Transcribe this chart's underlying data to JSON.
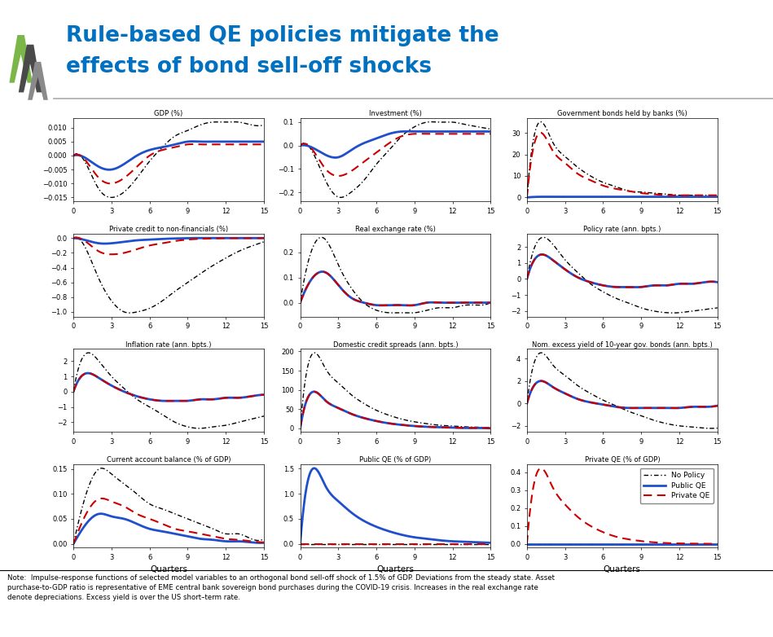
{
  "title_line1": "Rule-based QE policies mitigate the",
  "title_line2": "effects of bond sell-off shocks",
  "title_color": "#0070C0",
  "note_text": "Note:  Impulse-response functions of selected model variables to an orthogonal bond sell-off shock of 1.5% of GDP. Deviations from the steady state. Asset\npurchase-to-GDP ratio is representative of EME central bank sovereign bond purchases during the COVID-19 crisis. Increases in the real exchange rate\ndenote depreciations. Excess yield is over the US short–term rate.",
  "subplot_titles": [
    "GDP (%)",
    "Investment (%)",
    "Government bonds held by banks (%)",
    "Private credit to non-financials (%)",
    "Real exchange rate (%)",
    "Policy rate (ann. bpts.)",
    "Inflation rate (ann. bpts.)",
    "Domestic credit spreads (ann. bpts.)",
    "Nom. excess yield of 10-year gov. bonds (ann. bpts.)",
    "Current account balance (% of GDP)",
    "Public QE (% of GDP)",
    "Private QE (% of GDP)"
  ],
  "x_label": "Quarters",
  "legend_labels": [
    "No Policy",
    "Public QE",
    "Private QE"
  ],
  "quarters": [
    0,
    1,
    2,
    3,
    4,
    5,
    6,
    7,
    8,
    9,
    10,
    11,
    12,
    13,
    14,
    15
  ],
  "gdp_np": [
    0,
    -0.003,
    -0.012,
    -0.015,
    -0.013,
    -0.008,
    -0.002,
    0.003,
    0.007,
    0.009,
    0.011,
    0.012,
    0.012,
    0.012,
    0.011,
    0.011
  ],
  "gdp_pq": [
    0,
    -0.001,
    -0.004,
    -0.005,
    -0.003,
    0.0,
    0.002,
    0.003,
    0.004,
    0.005,
    0.005,
    0.005,
    0.005,
    0.005,
    0.005,
    0.005
  ],
  "gdp_prq": [
    0,
    -0.002,
    -0.008,
    -0.01,
    -0.008,
    -0.004,
    0.0,
    0.002,
    0.003,
    0.004,
    0.004,
    0.004,
    0.004,
    0.004,
    0.004,
    0.004
  ],
  "inv_np": [
    0,
    -0.03,
    -0.15,
    -0.22,
    -0.2,
    -0.15,
    -0.08,
    -0.02,
    0.04,
    0.08,
    0.1,
    0.1,
    0.1,
    0.09,
    0.08,
    0.07
  ],
  "inv_pq": [
    0,
    -0.01,
    -0.04,
    -0.05,
    -0.02,
    0.01,
    0.03,
    0.05,
    0.06,
    0.06,
    0.06,
    0.06,
    0.06,
    0.06,
    0.06,
    0.06
  ],
  "inv_prq": [
    0,
    -0.02,
    -0.1,
    -0.13,
    -0.11,
    -0.07,
    -0.03,
    0.01,
    0.04,
    0.05,
    0.05,
    0.05,
    0.05,
    0.05,
    0.05,
    0.05
  ],
  "gbhb_np": [
    0,
    35,
    26,
    19,
    14,
    10,
    7,
    5,
    3,
    2.5,
    2,
    1.5,
    1,
    1,
    1,
    1
  ],
  "gbhb_pq": [
    0,
    0.3,
    0.3,
    0.3,
    0.3,
    0.3,
    0.3,
    0.3,
    0.3,
    0.3,
    0.3,
    0.3,
    0.3,
    0.3,
    0.3,
    0.3
  ],
  "gbhb_prq": [
    0,
    30,
    22,
    16,
    11,
    8,
    5.5,
    4,
    3,
    2,
    1.5,
    1,
    1,
    1,
    1,
    1
  ],
  "pc_np": [
    0,
    -0.15,
    -0.55,
    -0.85,
    -1.0,
    -1.0,
    -0.95,
    -0.85,
    -0.72,
    -0.6,
    -0.48,
    -0.37,
    -0.27,
    -0.18,
    -0.11,
    -0.05
  ],
  "pc_pq": [
    0,
    -0.03,
    -0.07,
    -0.07,
    -0.05,
    -0.03,
    -0.02,
    -0.01,
    -0.005,
    0,
    0,
    0,
    0,
    0,
    0,
    0
  ],
  "pc_prq": [
    0,
    -0.05,
    -0.18,
    -0.22,
    -0.2,
    -0.15,
    -0.1,
    -0.07,
    -0.04,
    -0.02,
    -0.01,
    -0.005,
    0,
    0,
    0,
    0
  ],
  "rex_np": [
    0,
    0.22,
    0.25,
    0.15,
    0.06,
    0.0,
    -0.03,
    -0.04,
    -0.04,
    -0.04,
    -0.03,
    -0.02,
    -0.02,
    -0.01,
    -0.01,
    0
  ],
  "rex_pq": [
    0,
    0.1,
    0.12,
    0.07,
    0.02,
    0.0,
    -0.01,
    -0.01,
    -0.01,
    -0.01,
    0,
    0,
    0,
    0,
    0,
    0
  ],
  "rex_prq": [
    0,
    0.1,
    0.12,
    0.07,
    0.02,
    0.0,
    -0.01,
    -0.01,
    -0.01,
    -0.01,
    0,
    0,
    0,
    0,
    0,
    0
  ],
  "pr_np": [
    0,
    2.5,
    2.2,
    1.2,
    0.4,
    -0.3,
    -0.8,
    -1.2,
    -1.5,
    -1.8,
    -2.0,
    -2.1,
    -2.1,
    -2.0,
    -1.9,
    -1.8
  ],
  "pr_pq": [
    0,
    1.5,
    1.2,
    0.6,
    0.1,
    -0.2,
    -0.4,
    -0.5,
    -0.5,
    -0.5,
    -0.4,
    -0.4,
    -0.3,
    -0.3,
    -0.2,
    -0.2
  ],
  "pr_prq": [
    0,
    1.5,
    1.2,
    0.6,
    0.1,
    -0.2,
    -0.4,
    -0.5,
    -0.5,
    -0.5,
    -0.4,
    -0.4,
    -0.3,
    -0.3,
    -0.2,
    -0.2
  ],
  "inf_np": [
    0,
    2.5,
    2.0,
    1.0,
    0.2,
    -0.5,
    -1.0,
    -1.5,
    -2.0,
    -2.3,
    -2.4,
    -2.3,
    -2.2,
    -2.0,
    -1.8,
    -1.6
  ],
  "inf_pq": [
    0,
    1.2,
    0.9,
    0.4,
    0.0,
    -0.3,
    -0.5,
    -0.6,
    -0.6,
    -0.6,
    -0.5,
    -0.5,
    -0.4,
    -0.4,
    -0.3,
    -0.2
  ],
  "inf_prq": [
    0,
    1.2,
    0.9,
    0.4,
    0.0,
    -0.3,
    -0.5,
    -0.6,
    -0.6,
    -0.6,
    -0.5,
    -0.5,
    -0.4,
    -0.4,
    -0.3,
    -0.2
  ],
  "dcs_np": [
    0,
    195,
    155,
    118,
    88,
    65,
    47,
    34,
    24,
    17,
    12,
    8,
    6,
    4,
    3,
    2
  ],
  "dcs_pq": [
    0,
    95,
    72,
    53,
    38,
    27,
    19,
    13,
    9,
    6,
    4,
    3,
    2,
    1,
    1,
    0
  ],
  "dcs_prq": [
    0,
    95,
    72,
    53,
    38,
    27,
    19,
    13,
    9,
    6,
    4,
    3,
    2,
    1,
    1,
    0
  ],
  "ney_np": [
    0,
    4.5,
    3.5,
    2.5,
    1.6,
    0.9,
    0.3,
    -0.2,
    -0.7,
    -1.1,
    -1.5,
    -1.8,
    -2.0,
    -2.1,
    -2.2,
    -2.2
  ],
  "ney_pq": [
    0,
    2.0,
    1.5,
    0.9,
    0.4,
    0.1,
    -0.1,
    -0.3,
    -0.4,
    -0.4,
    -0.4,
    -0.4,
    -0.4,
    -0.3,
    -0.3,
    -0.2
  ],
  "ney_prq": [
    0,
    2.0,
    1.5,
    0.9,
    0.4,
    0.1,
    -0.1,
    -0.3,
    -0.4,
    -0.4,
    -0.4,
    -0.4,
    -0.4,
    -0.3,
    -0.3,
    -0.2
  ],
  "cab_np": [
    0,
    0.1,
    0.15,
    0.14,
    0.12,
    0.1,
    0.08,
    0.07,
    0.06,
    0.05,
    0.04,
    0.03,
    0.02,
    0.02,
    0.01,
    0.01
  ],
  "cab_pq": [
    0,
    0.04,
    0.06,
    0.055,
    0.05,
    0.04,
    0.03,
    0.025,
    0.02,
    0.015,
    0.01,
    0.008,
    0.005,
    0.005,
    0.003,
    0.002
  ],
  "cab_prq": [
    0,
    0.06,
    0.09,
    0.085,
    0.075,
    0.06,
    0.05,
    0.04,
    0.03,
    0.025,
    0.02,
    0.015,
    0.01,
    0.008,
    0.005,
    0.003
  ],
  "pqe_np": [
    0,
    0,
    0,
    0,
    0,
    0,
    0,
    0,
    0,
    0,
    0,
    0,
    0,
    0,
    0,
    0
  ],
  "pqe_pq": [
    0,
    1.5,
    1.15,
    0.85,
    0.63,
    0.46,
    0.34,
    0.25,
    0.18,
    0.13,
    0.1,
    0.07,
    0.05,
    0.04,
    0.03,
    0.02
  ],
  "pqe_prq": [
    0,
    0,
    0,
    0,
    0,
    0,
    0,
    0,
    0,
    0,
    0,
    0,
    0,
    0,
    0,
    0
  ],
  "prqe_np": [
    0,
    0,
    0,
    0,
    0,
    0,
    0,
    0,
    0,
    0,
    0,
    0,
    0,
    0,
    0,
    0
  ],
  "prqe_pq": [
    0,
    0,
    0,
    0,
    0,
    0,
    0,
    0,
    0,
    0,
    0,
    0,
    0,
    0,
    0,
    0
  ],
  "prqe_prq": [
    0,
    0.42,
    0.32,
    0.22,
    0.15,
    0.1,
    0.065,
    0.04,
    0.025,
    0.015,
    0.008,
    0.004,
    0.002,
    0.001,
    0,
    0
  ]
}
